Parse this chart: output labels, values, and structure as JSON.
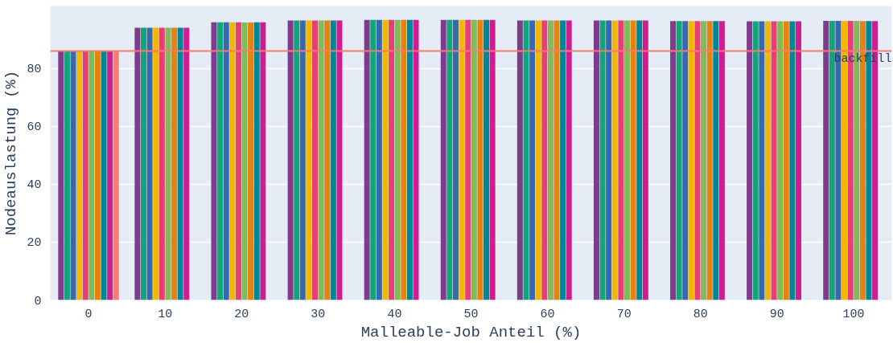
{
  "chart_data": {
    "type": "bar",
    "xlabel": "Malleable-Job Anteil (%)",
    "ylabel": "Nodeauslastung (%)",
    "categories": [
      "0",
      "10",
      "20",
      "30",
      "40",
      "50",
      "60",
      "70",
      "80",
      "90",
      "100"
    ],
    "ylim": [
      0,
      101.5
    ],
    "yticks": [
      0,
      20,
      40,
      60,
      80
    ],
    "grid": "y",
    "series": [
      {
        "color": "#7f3c8d",
        "values": [
          86.0,
          94.0,
          95.9,
          96.5,
          96.7,
          96.7,
          96.5,
          96.5,
          96.3,
          96.2,
          96.4
        ]
      },
      {
        "color": "#11a579",
        "values": [
          86.0,
          94.0,
          95.9,
          96.5,
          96.7,
          96.7,
          96.5,
          96.5,
          96.3,
          96.2,
          96.4
        ]
      },
      {
        "color": "#3969ac",
        "values": [
          86.0,
          94.0,
          95.9,
          96.5,
          96.7,
          96.7,
          96.5,
          96.5,
          96.3,
          96.2,
          96.4
        ]
      },
      {
        "color": "#f2b701",
        "values": [
          86.0,
          94.0,
          95.9,
          96.5,
          96.7,
          96.7,
          96.5,
          96.5,
          96.3,
          96.2,
          96.4
        ]
      },
      {
        "color": "#e73f74",
        "values": [
          86.0,
          94.0,
          95.9,
          96.5,
          96.7,
          96.7,
          96.5,
          96.5,
          96.3,
          96.2,
          96.4
        ]
      },
      {
        "color": "#80ba5a",
        "values": [
          86.0,
          94.0,
          95.8,
          96.5,
          96.7,
          96.7,
          96.5,
          96.5,
          96.3,
          96.2,
          96.4
        ]
      },
      {
        "color": "#e68310",
        "values": [
          86.0,
          94.0,
          95.8,
          96.5,
          96.7,
          96.7,
          96.5,
          96.5,
          96.3,
          96.2,
          96.3
        ]
      },
      {
        "color": "#008695",
        "values": [
          86.0,
          94.0,
          95.9,
          96.5,
          96.7,
          96.7,
          96.5,
          96.5,
          96.3,
          96.2,
          96.3
        ]
      },
      {
        "color": "#cf1c90",
        "values": [
          86.0,
          94.0,
          95.9,
          96.5,
          96.7,
          96.7,
          96.5,
          96.5,
          96.3,
          96.2,
          96.3
        ]
      },
      {
        "color": "#f97b72",
        "values": [
          86.0,
          null,
          null,
          null,
          null,
          null,
          null,
          null,
          null,
          null,
          null
        ]
      }
    ],
    "ref_lines": [
      {
        "axis": "y",
        "value": 86.0,
        "label": "backfill",
        "color": "#f97b72"
      }
    ]
  }
}
